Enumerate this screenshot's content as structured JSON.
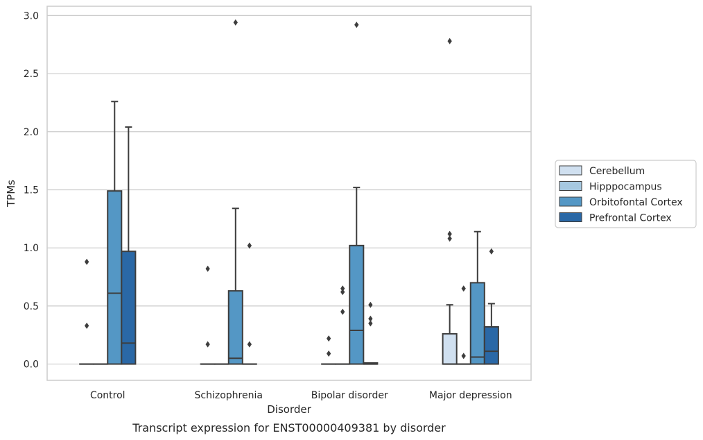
{
  "chart_data": {
    "type": "box",
    "title": "",
    "caption": "Transcript expression for ENST00000409381 by disorder",
    "xlabel": "Disorder",
    "ylabel": "TPMs",
    "ylim": [
      -0.14,
      3.08
    ],
    "yticks": [
      0.0,
      0.5,
      1.0,
      1.5,
      2.0,
      2.5,
      3.0
    ],
    "ytick_labels": [
      "0.0",
      "0.5",
      "1.0",
      "1.5",
      "2.0",
      "2.5",
      "3.0"
    ],
    "grid": "horizontal",
    "legend_position": "right",
    "categories": [
      "Control",
      "Schizophrenia",
      "Bipolar disorder",
      "Major depression"
    ],
    "series": [
      {
        "name": "Cerebellum",
        "color": "#d0e0f0",
        "boxes": [
          {
            "q1": 0,
            "median": 0,
            "q3": 0,
            "whisker_low": 0,
            "whisker_high": 0,
            "outliers": [
              0.88,
              0.33
            ]
          },
          {
            "q1": 0,
            "median": 0,
            "q3": 0,
            "whisker_low": 0,
            "whisker_high": 0,
            "outliers": [
              0.82,
              0.17
            ]
          },
          {
            "q1": 0,
            "median": 0,
            "q3": 0,
            "whisker_low": 0,
            "whisker_high": 0,
            "outliers": [
              0.22,
              0.09
            ]
          },
          {
            "q1": 0,
            "median": 0,
            "q3": 0.26,
            "whisker_low": 0,
            "whisker_high": 0.51,
            "outliers": [
              2.78,
              1.12,
              1.08
            ]
          }
        ]
      },
      {
        "name": "Hipppocampus",
        "color": "#a6c8e0",
        "boxes": [
          {
            "q1": 0,
            "median": 0,
            "q3": 0,
            "whisker_low": 0,
            "whisker_high": 0,
            "outliers": []
          },
          {
            "q1": 0,
            "median": 0,
            "q3": 0,
            "whisker_low": 0,
            "whisker_high": 0,
            "outliers": []
          },
          {
            "q1": 0,
            "median": 0,
            "q3": 0,
            "whisker_low": 0,
            "whisker_high": 0,
            "outliers": [
              0.65,
              0.62,
              0.45
            ]
          },
          {
            "q1": 0,
            "median": 0,
            "q3": 0,
            "whisker_low": 0,
            "whisker_high": 0,
            "outliers": [
              0.65,
              0.07
            ]
          }
        ]
      },
      {
        "name": "Orbitofontal Cortex",
        "color": "#5497c5",
        "boxes": [
          {
            "q1": 0,
            "median": 0.61,
            "q3": 1.49,
            "whisker_low": 0,
            "whisker_high": 2.26,
            "outliers": []
          },
          {
            "q1": 0,
            "median": 0.05,
            "q3": 0.63,
            "whisker_low": 0,
            "whisker_high": 1.34,
            "outliers": [
              2.94
            ]
          },
          {
            "q1": 0,
            "median": 0.29,
            "q3": 1.02,
            "whisker_low": 0,
            "whisker_high": 1.52,
            "outliers": [
              2.92
            ]
          },
          {
            "q1": 0,
            "median": 0.06,
            "q3": 0.7,
            "whisker_low": 0,
            "whisker_high": 1.14,
            "outliers": []
          }
        ]
      },
      {
        "name": "Prefrontal Cortex",
        "color": "#2a68a6",
        "boxes": [
          {
            "q1": 0,
            "median": 0.18,
            "q3": 0.97,
            "whisker_low": 0,
            "whisker_high": 2.04,
            "outliers": []
          },
          {
            "q1": 0,
            "median": 0,
            "q3": 0,
            "whisker_low": 0,
            "whisker_high": 0,
            "outliers": [
              1.02,
              0.17
            ]
          },
          {
            "q1": 0,
            "median": 0,
            "q3": 0.01,
            "whisker_low": 0,
            "whisker_high": 0.01,
            "outliers": [
              0.51,
              0.39,
              0.35
            ]
          },
          {
            "q1": 0,
            "median": 0.11,
            "q3": 0.32,
            "whisker_low": 0,
            "whisker_high": 0.52,
            "outliers": [
              0.97
            ]
          }
        ]
      }
    ]
  }
}
